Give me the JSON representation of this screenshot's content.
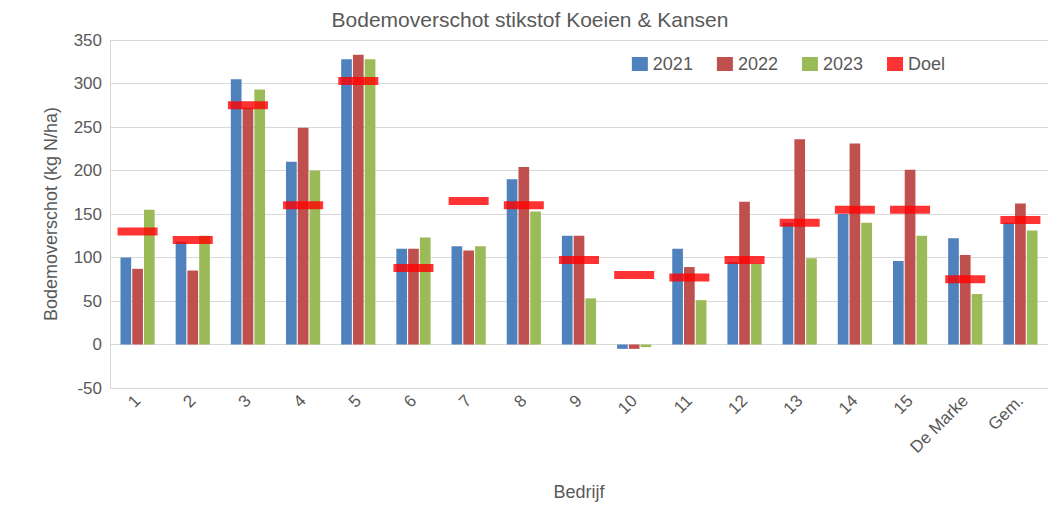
{
  "chart_data": {
    "type": "bar",
    "title": "Bodemoverschot stikstof Koeien & Kansen",
    "x_label": "Bedrijf",
    "y_label": "Bodemoverschot (kg N/ha)",
    "categories": [
      "1",
      "2",
      "3",
      "4",
      "5",
      "6",
      "7",
      "8",
      "9",
      "10",
      "11",
      "12",
      "13",
      "14",
      "15",
      "De Marke",
      "Gem."
    ],
    "series": [
      {
        "name": "2021",
        "type": "bar",
        "color": "#4f81bd",
        "values": [
          100,
          118,
          305,
          210,
          328,
          110,
          113,
          190,
          125,
          -5,
          110,
          95,
          140,
          150,
          96,
          122,
          140
        ]
      },
      {
        "name": "2022",
        "type": "bar",
        "color": "#c0504d",
        "values": [
          87,
          85,
          272,
          249,
          333,
          110,
          108,
          204,
          125,
          -5,
          89,
          164,
          236,
          231,
          201,
          103,
          162
        ]
      },
      {
        "name": "2023",
        "type": "bar",
        "color": "#9bbb59",
        "values": [
          155,
          125,
          293,
          200,
          328,
          123,
          113,
          153,
          53,
          -3,
          51,
          93,
          99,
          140,
          125,
          58,
          131
        ]
      },
      {
        "name": "Doel",
        "type": "scatter",
        "marker": "dash",
        "color": "#ff0000",
        "values": [
          130,
          120,
          275,
          160,
          303,
          88,
          165,
          160,
          97,
          80,
          77,
          97,
          140,
          155,
          155,
          75,
          143
        ]
      }
    ],
    "ylim": [
      -50,
      350
    ],
    "yticks": [
      -50,
      0,
      50,
      100,
      150,
      200,
      250,
      300,
      350
    ],
    "grid": true,
    "legend": "top-right"
  }
}
